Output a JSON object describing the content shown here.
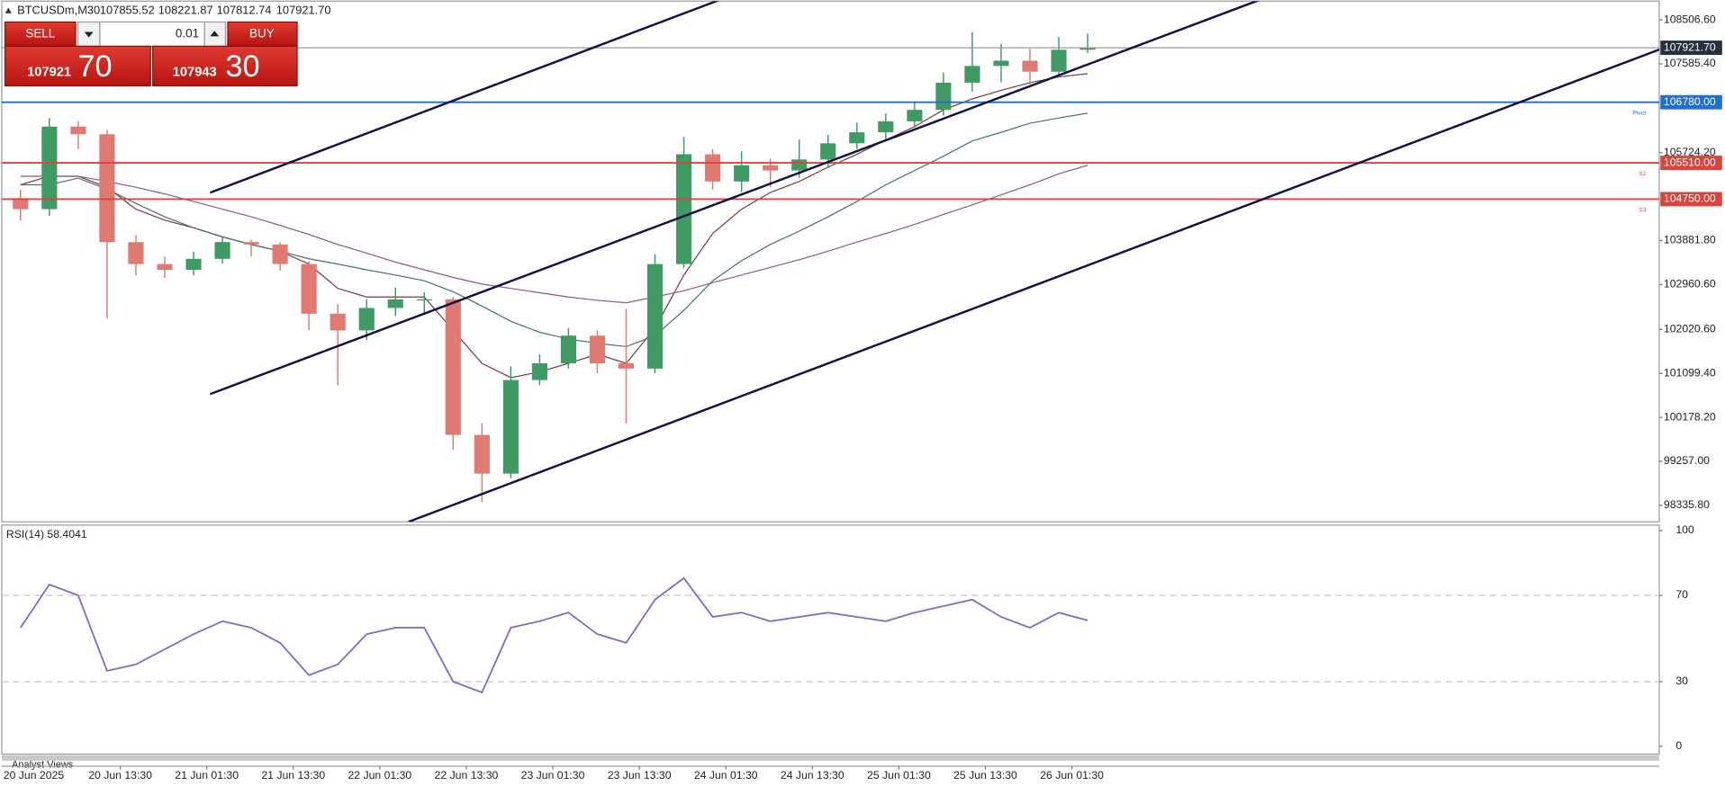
{
  "window": {
    "symbol": "BTCUSDm,M30",
    "quote": [
      "107855.52",
      "108221.87",
      "107812.74",
      "107921.70"
    ]
  },
  "trade_panel": {
    "sell": "SELL",
    "buy": "BUY",
    "volume": "0.01",
    "bid": {
      "main": "107921",
      "pips": "70"
    },
    "ask": {
      "main": "107943",
      "pips": "30"
    }
  },
  "footer": {
    "tab": "Analyst Views"
  },
  "chart_data": [
    {
      "type": "candlestick",
      "up_color": "#3f9a63",
      "down_color": "#e07a70",
      "ohlc": [
        [
          104770,
          104950,
          104300,
          104540
        ],
        [
          104540,
          106450,
          104400,
          106270
        ],
        [
          106270,
          106380,
          105800,
          106110
        ],
        [
          106110,
          106200,
          102250,
          103850
        ],
        [
          103850,
          104000,
          103150,
          103390
        ],
        [
          103390,
          103550,
          103100,
          103270
        ],
        [
          103270,
          103650,
          103150,
          103500
        ],
        [
          103500,
          103950,
          103400,
          103850
        ],
        [
          103850,
          103900,
          103550,
          103800
        ],
        [
          103800,
          103850,
          103250,
          103390
        ],
        [
          103390,
          103450,
          102000,
          102350
        ],
        [
          102350,
          102550,
          100850,
          102000
        ],
        [
          102000,
          102650,
          101800,
          102470
        ],
        [
          102470,
          102900,
          102300,
          102650
        ],
        [
          102650,
          102800,
          102350,
          102650
        ],
        [
          102650,
          102700,
          99500,
          99810
        ],
        [
          99810,
          100050,
          98400,
          99000
        ],
        [
          99000,
          101250,
          98900,
          100960
        ],
        [
          100960,
          101500,
          100850,
          101310
        ],
        [
          101310,
          102050,
          101200,
          101890
        ],
        [
          101890,
          102000,
          101100,
          101310
        ],
        [
          101310,
          102450,
          100050,
          101200
        ],
        [
          101200,
          103600,
          101100,
          103390
        ],
        [
          103390,
          106050,
          103300,
          105690
        ],
        [
          105690,
          105800,
          104950,
          105120
        ],
        [
          105120,
          105750,
          104900,
          105460
        ],
        [
          105460,
          105600,
          105000,
          105350
        ],
        [
          105350,
          106000,
          105200,
          105580
        ],
        [
          105580,
          106100,
          105400,
          105920
        ],
        [
          105920,
          106350,
          105800,
          106150
        ],
        [
          106150,
          106550,
          106000,
          106380
        ],
        [
          106380,
          106800,
          106250,
          106620
        ],
        [
          106620,
          107400,
          106500,
          107190
        ],
        [
          107190,
          108250,
          107000,
          107540
        ],
        [
          107540,
          108000,
          107200,
          107650
        ],
        [
          107650,
          107900,
          107150,
          107420
        ],
        [
          107420,
          108150,
          107300,
          107880
        ],
        [
          107880,
          108221.87,
          107812.74,
          107921.7
        ]
      ],
      "moving_averages": [
        {
          "color": "#7a3b3b",
          "values": [
            105050,
            105230,
            105230,
            105000,
            104540,
            104310,
            104150,
            103960,
            103800,
            103660,
            103390,
            102880,
            102700,
            102700,
            102700,
            102000,
            101310,
            101010,
            101130,
            101310,
            101500,
            101310,
            102050,
            103160,
            104030,
            104540,
            104890,
            105120,
            105420,
            105690,
            105990,
            106270,
            106620,
            106850,
            107030,
            107190,
            107310,
            107380
          ]
        },
        {
          "color": "#4a7070",
          "values": [
            105050,
            105050,
            105190,
            104960,
            104660,
            104380,
            104150,
            103960,
            103800,
            103660,
            103500,
            103390,
            103270,
            103160,
            103040,
            102810,
            102510,
            102190,
            101960,
            101820,
            101730,
            101660,
            101890,
            102420,
            103040,
            103460,
            103800,
            104080,
            104380,
            104700,
            105050,
            105350,
            105650,
            105970,
            106150,
            106340,
            106450,
            106550
          ]
        },
        {
          "color": "#8a5a8a",
          "values": [
            105230,
            105230,
            105230,
            105120,
            105000,
            104860,
            104700,
            104540,
            104380,
            104200,
            104010,
            103800,
            103620,
            103430,
            103270,
            103110,
            102970,
            102880,
            102790,
            102700,
            102630,
            102580,
            102700,
            102830,
            103000,
            103160,
            103320,
            103480,
            103660,
            103850,
            104030,
            104220,
            104430,
            104630,
            104840,
            105050,
            105280,
            105460
          ]
        }
      ],
      "levels": [
        {
          "value": 106780,
          "label": "106780.00",
          "name": "Pivot",
          "color": "#1f6fd1"
        },
        {
          "value": 105510,
          "label": "105510.00",
          "name": "S2",
          "color": "#d9443c"
        },
        {
          "value": 104750,
          "label": "104750.00",
          "name": "S3",
          "color": "#d9443c"
        }
      ],
      "last_price": {
        "value": 107921.7,
        "label": "107921.70",
        "color": "#9a9a9a",
        "label_color": "#24323f"
      },
      "ylim": [
        97990,
        108876
      ],
      "yticks": [
        {
          "value": 108506.6,
          "label": "108506.60"
        },
        {
          "value": 107585.4,
          "label": "107585.40"
        },
        {
          "value": 105724.2,
          "label": "105724.20"
        },
        {
          "value": 103881.8,
          "label": "103881.80"
        },
        {
          "value": 102960.6,
          "label": "102960.60"
        },
        {
          "value": 102020.6,
          "label": "102020.60"
        },
        {
          "value": 101099.4,
          "label": "101099.40"
        },
        {
          "value": 100178.2,
          "label": "100178.20"
        },
        {
          "value": 99257,
          "label": "99257.00"
        },
        {
          "value": 98335.8,
          "label": "98335.80"
        }
      ],
      "time_labels": [
        "20 Jun 2025",
        "20 Jun 13:30",
        "21 Jun 01:30",
        "21 Jun 13:30",
        "22 Jun 01:30",
        "22 Jun 13:30",
        "23 Jun 01:30",
        "23 Jun 13:30",
        "24 Jun 01:30",
        "24 Jun 13:30",
        "25 Jun 01:30",
        "25 Jun 13:30",
        "26 Jun 01:30"
      ]
    },
    {
      "type": "line",
      "title": "RSI(14) 58.4041",
      "color": "#7b6fc6",
      "values": [
        55,
        75,
        70,
        35,
        38,
        45,
        52,
        58,
        55,
        48,
        33,
        38,
        52,
        55,
        55,
        30,
        25,
        55,
        58,
        62,
        52,
        48,
        68,
        78,
        60,
        62,
        58,
        60,
        62,
        60,
        58,
        62,
        65,
        68,
        60,
        55,
        62,
        58.4041
      ],
      "ylim": [
        0,
        100
      ],
      "yticks": [
        0,
        30,
        70,
        100
      ],
      "levels": [
        30,
        70
      ]
    }
  ]
}
